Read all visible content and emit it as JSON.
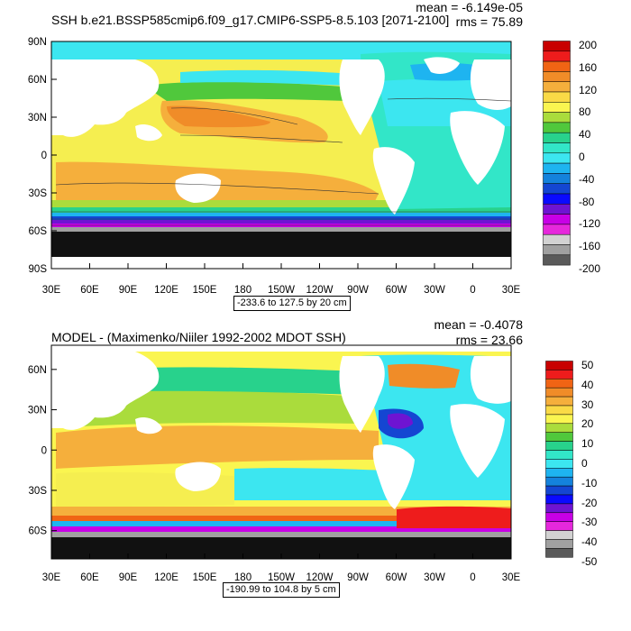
{
  "panels": [
    {
      "title": "SSH b.e21.BSSP585cmip6.f09_g17.CMIP6-SSP5-8.5.103 [2071-2100]",
      "mean": "mean = -6.149e-05",
      "rms": "rms = 75.89",
      "range": "-233.6 to 127.5 by 20 cm",
      "lat_ticks": [
        "90N",
        "60N",
        "30N",
        "0",
        "30S",
        "60S",
        "90S"
      ],
      "lon_ticks": [
        "30E",
        "60E",
        "90E",
        "120E",
        "150E",
        "180",
        "150W",
        "120W",
        "90W",
        "60W",
        "30W",
        "0",
        "30E"
      ],
      "colorbar_labels": [
        "200",
        "160",
        "120",
        "80",
        "40",
        "0",
        "-40",
        "-80",
        "-120",
        "-160",
        "-200"
      ],
      "colorbar_colors": [
        "#c80000",
        "#ee1c1c",
        "#f06414",
        "#f08c28",
        "#f5af3c",
        "#fada46",
        "#faf550",
        "#aadc3c",
        "#50c83c",
        "#28d28c",
        "#32e6c8",
        "#3ce6f0",
        "#1eb4f0",
        "#1482dc",
        "#1446d2",
        "#0a0aff",
        "#6e14d2",
        "#c800e6",
        "#e628dc",
        "#d2d2d2",
        "#a0a0a0",
        "#5a5a5a"
      ]
    },
    {
      "title": "MODEL - (Maximenko/Niiler 1992-2002 MDOT SSH)",
      "mean": "mean = -0.4078",
      "rms": "rms = 23.66",
      "range": "-190.99 to 104.8 by 5 cm",
      "lat_ticks": [
        "60N",
        "30N",
        "0",
        "30S",
        "60S"
      ],
      "lon_ticks": [
        "30E",
        "60E",
        "90E",
        "120E",
        "150E",
        "180",
        "150W",
        "120W",
        "90W",
        "60W",
        "30W",
        "0",
        "30E"
      ],
      "colorbar_labels": [
        "50",
        "40",
        "30",
        "20",
        "10",
        "0",
        "-10",
        "-20",
        "-30",
        "-40",
        "-50"
      ],
      "colorbar_colors": [
        "#c80000",
        "#ee1c1c",
        "#f06414",
        "#f08c28",
        "#f5af3c",
        "#fada46",
        "#faf550",
        "#aadc3c",
        "#50c83c",
        "#28d28c",
        "#32e6c8",
        "#3ce6f0",
        "#1eb4f0",
        "#1482dc",
        "#1446d2",
        "#0a0aff",
        "#6e14d2",
        "#c800e6",
        "#e628dc",
        "#d2d2d2",
        "#a0a0a0",
        "#5a5a5a"
      ]
    }
  ]
}
